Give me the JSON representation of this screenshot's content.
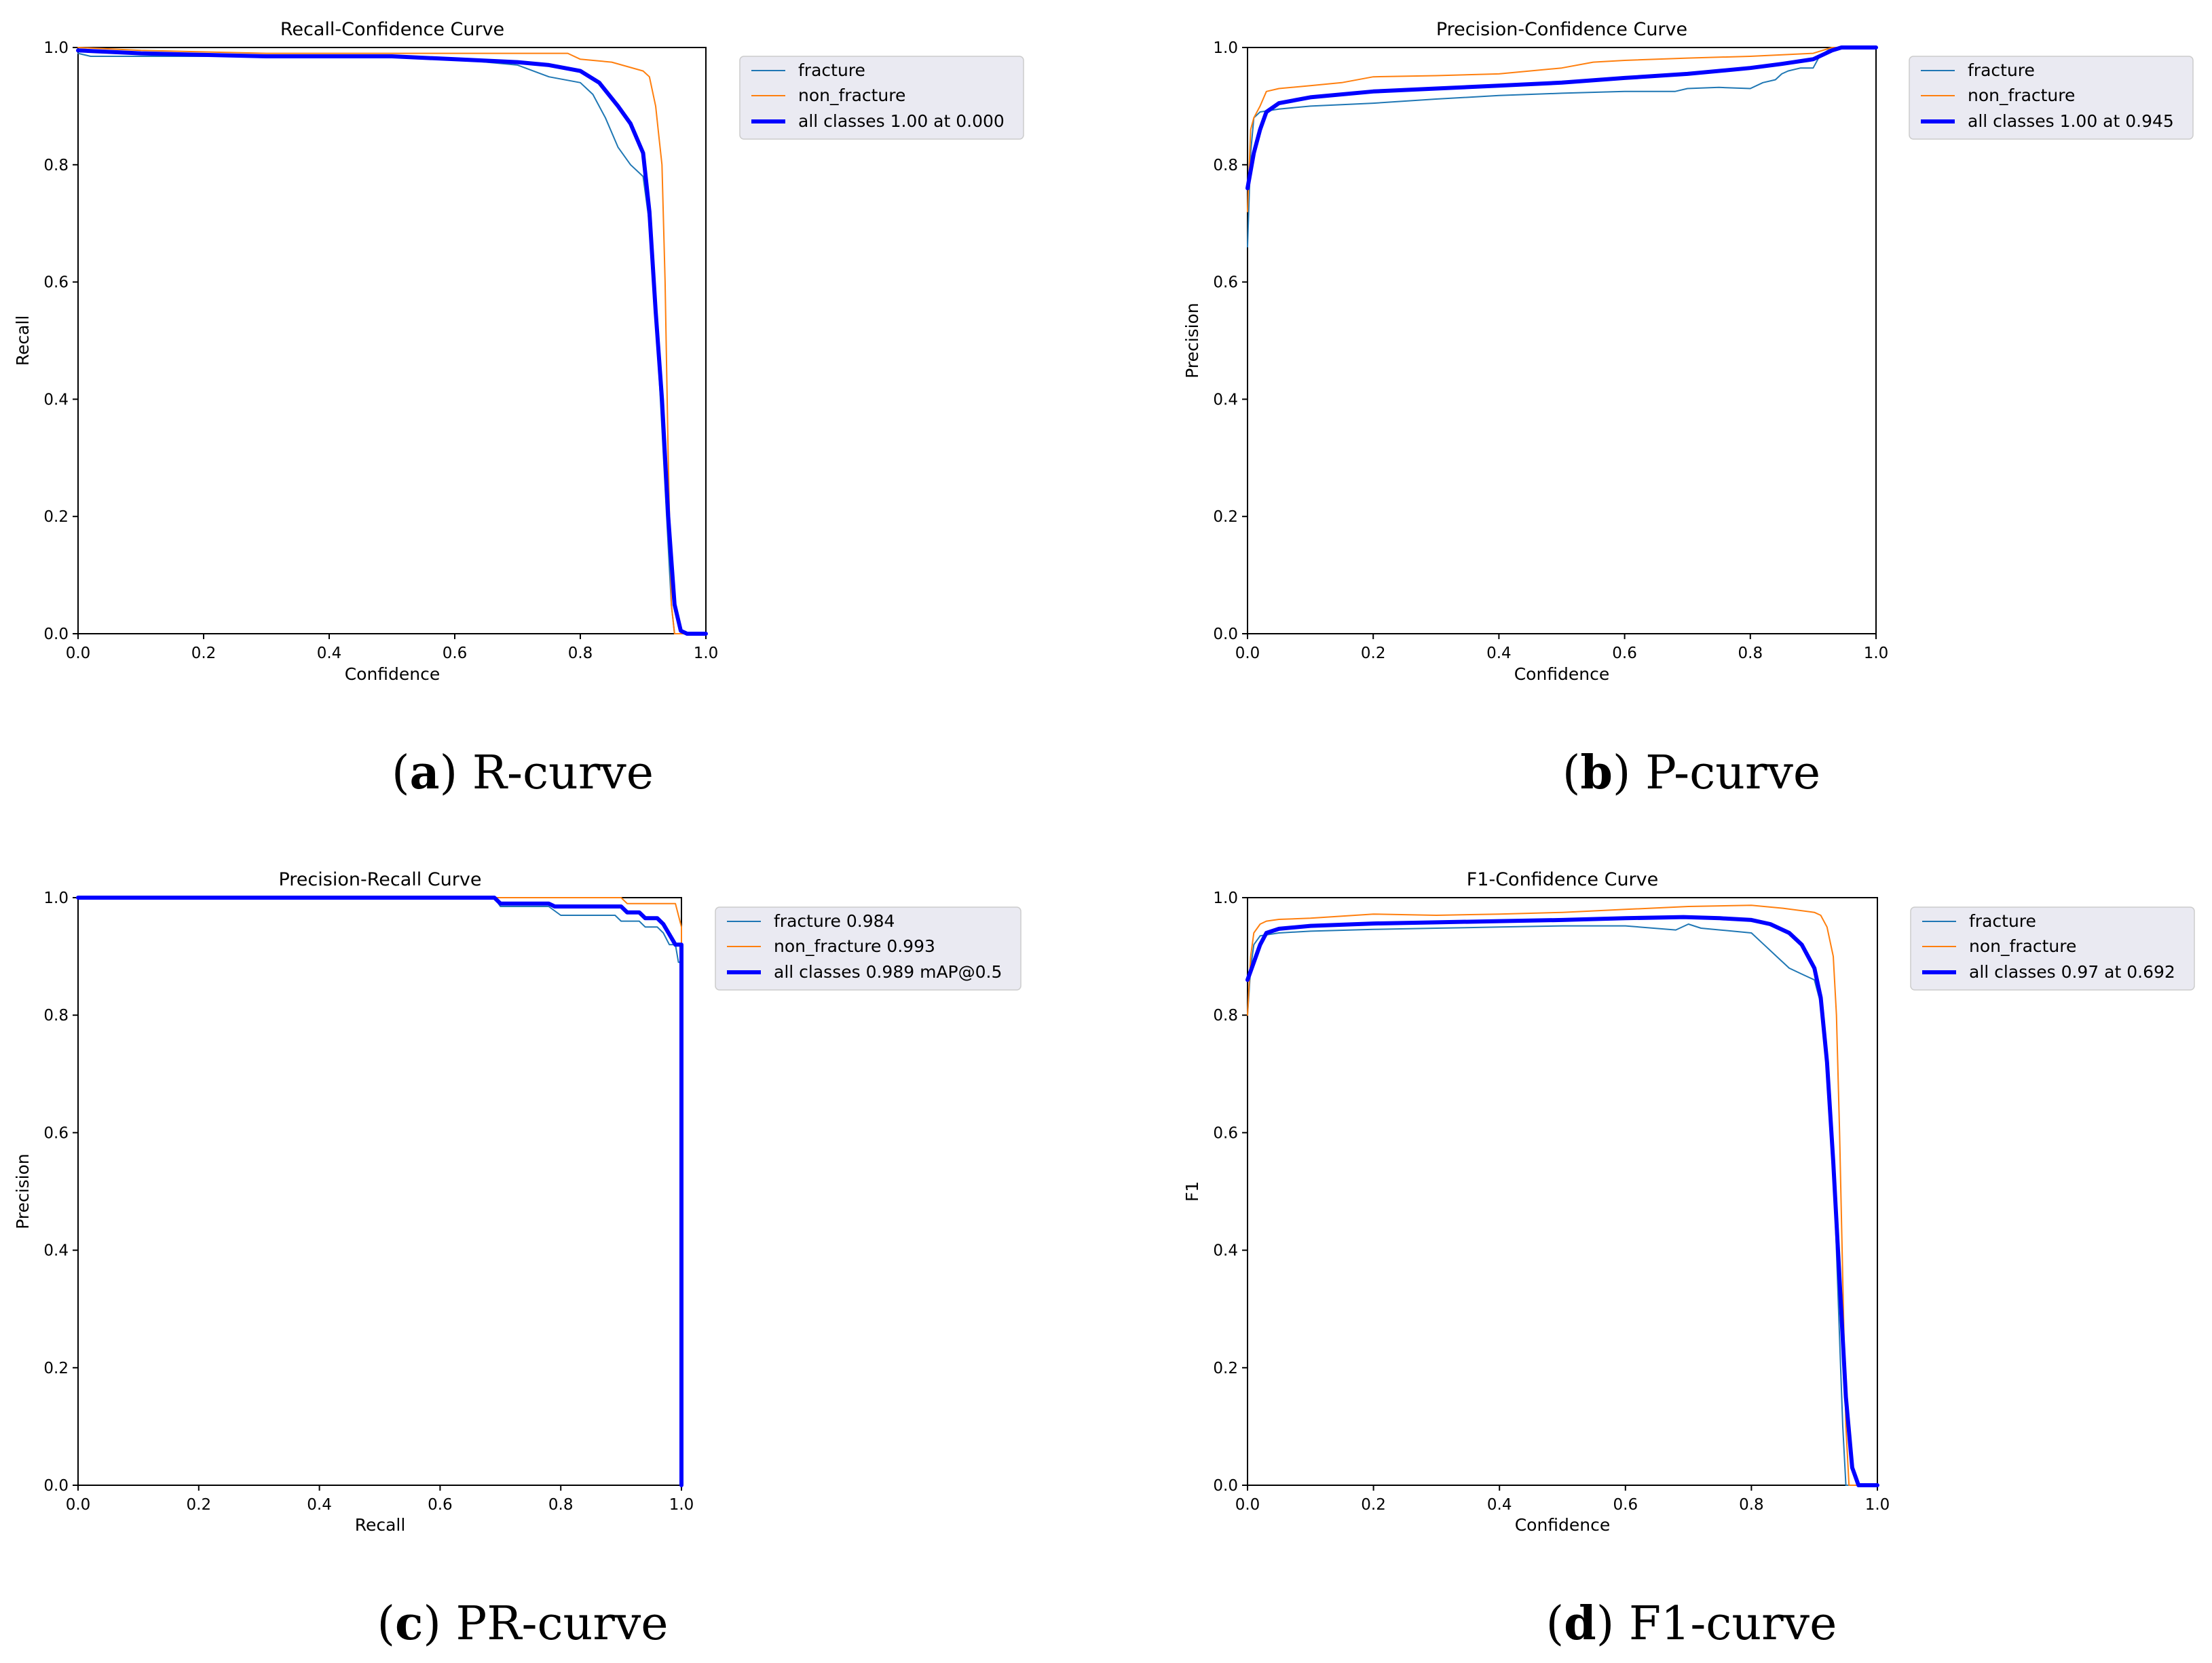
{
  "colors": {
    "fracture": "#1f77b4",
    "non_fracture": "#ff7f0e",
    "all_classes": "#0000ff"
  },
  "chart_data": [
    {
      "type": "line",
      "title": "Recall-Confidence Curve",
      "xlabel": "Confidence",
      "ylabel": "Recall",
      "xlim": [
        0,
        1
      ],
      "ylim": [
        0,
        1
      ],
      "xticks": [
        "0.0",
        "0.2",
        "0.4",
        "0.6",
        "0.8",
        "1.0"
      ],
      "yticks": [
        "0.0",
        "0.2",
        "0.4",
        "0.6",
        "0.8",
        "1.0"
      ],
      "legend_position": "outside-right-top",
      "caption": {
        "letter": "a",
        "text": "R-curve"
      },
      "series": [
        {
          "name": "fracture",
          "color": "#1f77b4",
          "width": 2,
          "x": [
            0,
            0.02,
            0.1,
            0.3,
            0.5,
            0.6,
            0.7,
            0.75,
            0.8,
            0.82,
            0.84,
            0.86,
            0.88,
            0.9,
            0.91,
            0.92,
            0.93,
            0.94,
            0.945,
            0.95,
            1.0
          ],
          "y": [
            0.99,
            0.985,
            0.985,
            0.985,
            0.985,
            0.98,
            0.97,
            0.95,
            0.94,
            0.92,
            0.88,
            0.83,
            0.8,
            0.78,
            0.7,
            0.55,
            0.35,
            0.15,
            0.05,
            0,
            0
          ]
        },
        {
          "name": "non_fracture",
          "color": "#ff7f0e",
          "width": 2,
          "x": [
            0,
            0.1,
            0.3,
            0.5,
            0.6,
            0.7,
            0.78,
            0.8,
            0.85,
            0.9,
            0.91,
            0.92,
            0.925,
            0.93,
            0.935,
            0.94,
            0.945,
            0.95,
            1.0
          ],
          "y": [
            1.0,
            0.995,
            0.99,
            0.99,
            0.99,
            0.99,
            0.99,
            0.98,
            0.975,
            0.96,
            0.95,
            0.9,
            0.85,
            0.8,
            0.6,
            0.3,
            0.05,
            0,
            0
          ]
        },
        {
          "name": "all classes 1.00 at 0.000",
          "color": "#0000ff",
          "width": 6,
          "x": [
            0,
            0.1,
            0.3,
            0.5,
            0.6,
            0.7,
            0.75,
            0.8,
            0.83,
            0.86,
            0.88,
            0.9,
            0.91,
            0.92,
            0.93,
            0.94,
            0.95,
            0.96,
            0.97,
            1.0
          ],
          "y": [
            0.995,
            0.99,
            0.985,
            0.985,
            0.98,
            0.975,
            0.97,
            0.96,
            0.94,
            0.9,
            0.87,
            0.82,
            0.72,
            0.55,
            0.4,
            0.2,
            0.05,
            0.005,
            0,
            0
          ]
        }
      ]
    },
    {
      "type": "line",
      "title": "Precision-Confidence Curve",
      "xlabel": "Confidence",
      "ylabel": "Precision",
      "xlim": [
        0,
        1
      ],
      "ylim": [
        0,
        1
      ],
      "xticks": [
        "0.0",
        "0.2",
        "0.4",
        "0.6",
        "0.8",
        "1.0"
      ],
      "yticks": [
        "0.0",
        "0.2",
        "0.4",
        "0.6",
        "0.8",
        "1.0"
      ],
      "legend_position": "outside-right-top",
      "caption": {
        "letter": "b",
        "text": "P-curve"
      },
      "series": [
        {
          "name": "fracture",
          "color": "#1f77b4",
          "width": 2,
          "x": [
            0,
            0.005,
            0.01,
            0.02,
            0.05,
            0.1,
            0.2,
            0.3,
            0.4,
            0.5,
            0.6,
            0.68,
            0.7,
            0.75,
            0.8,
            0.82,
            0.84,
            0.85,
            0.86,
            0.88,
            0.9,
            0.91,
            0.93,
            0.95,
            1.0
          ],
          "y": [
            0.66,
            0.82,
            0.88,
            0.89,
            0.895,
            0.9,
            0.905,
            0.912,
            0.918,
            0.922,
            0.925,
            0.925,
            0.93,
            0.932,
            0.93,
            0.94,
            0.945,
            0.955,
            0.96,
            0.965,
            0.965,
            0.985,
            1.0,
            1.0,
            1.0
          ]
        },
        {
          "name": "non_fracture",
          "color": "#ff7f0e",
          "width": 2,
          "x": [
            0,
            0.005,
            0.01,
            0.02,
            0.03,
            0.05,
            0.1,
            0.15,
            0.2,
            0.3,
            0.4,
            0.5,
            0.55,
            0.6,
            0.7,
            0.8,
            0.9,
            0.93,
            0.95,
            1.0
          ],
          "y": [
            0.72,
            0.86,
            0.88,
            0.9,
            0.925,
            0.93,
            0.935,
            0.94,
            0.95,
            0.952,
            0.955,
            0.965,
            0.975,
            0.978,
            0.982,
            0.985,
            0.99,
            1.0,
            1.0,
            1.0
          ]
        },
        {
          "name": "all classes 1.00 at 0.945",
          "color": "#0000ff",
          "width": 6,
          "x": [
            0,
            0.01,
            0.02,
            0.03,
            0.05,
            0.1,
            0.2,
            0.3,
            0.4,
            0.5,
            0.6,
            0.7,
            0.8,
            0.85,
            0.9,
            0.93,
            0.945,
            1.0
          ],
          "y": [
            0.76,
            0.82,
            0.86,
            0.89,
            0.905,
            0.915,
            0.925,
            0.93,
            0.935,
            0.94,
            0.948,
            0.955,
            0.965,
            0.972,
            0.98,
            0.995,
            1.0,
            1.0
          ]
        }
      ]
    },
    {
      "type": "line",
      "title": "Precision-Recall Curve",
      "xlabel": "Recall",
      "ylabel": "Precision",
      "xlim": [
        0,
        1
      ],
      "ylim": [
        0,
        1
      ],
      "xticks": [
        "0.0",
        "0.2",
        "0.4",
        "0.6",
        "0.8",
        "1.0"
      ],
      "yticks": [
        "0.0",
        "0.2",
        "0.4",
        "0.6",
        "0.8",
        "1.0"
      ],
      "legend_position": "outside-right-top",
      "caption": {
        "letter": "c",
        "text": "PR-curve"
      },
      "series": [
        {
          "name": "fracture 0.984",
          "color": "#1f77b4",
          "width": 2,
          "x": [
            0,
            0.69,
            0.7,
            0.78,
            0.8,
            0.89,
            0.9,
            0.93,
            0.94,
            0.96,
            0.97,
            0.98,
            0.99,
            0.995,
            1.0,
            1.0
          ],
          "y": [
            1.0,
            1.0,
            0.985,
            0.985,
            0.97,
            0.97,
            0.96,
            0.96,
            0.95,
            0.95,
            0.94,
            0.92,
            0.92,
            0.89,
            0.89,
            0.0
          ]
        },
        {
          "name": "non_fracture 0.993",
          "color": "#ff7f0e",
          "width": 2,
          "x": [
            0,
            0.9,
            0.91,
            0.99,
            1.0,
            1.0
          ],
          "y": [
            1.0,
            1.0,
            0.99,
            0.99,
            0.95,
            0.0
          ]
        },
        {
          "name": "all classes 0.989 mAP@0.5",
          "color": "#0000ff",
          "width": 6,
          "x": [
            0,
            0.69,
            0.7,
            0.78,
            0.79,
            0.9,
            0.91,
            0.93,
            0.94,
            0.96,
            0.97,
            0.99,
            1.0,
            1.0
          ],
          "y": [
            1.0,
            1.0,
            0.99,
            0.99,
            0.985,
            0.985,
            0.975,
            0.975,
            0.965,
            0.965,
            0.955,
            0.92,
            0.92,
            0.0
          ]
        }
      ]
    },
    {
      "type": "line",
      "title": "F1-Confidence Curve",
      "xlabel": "Confidence",
      "ylabel": "F1",
      "xlim": [
        0,
        1
      ],
      "ylim": [
        0,
        1
      ],
      "xticks": [
        "0.0",
        "0.2",
        "0.4",
        "0.6",
        "0.8",
        "1.0"
      ],
      "yticks": [
        "0.0",
        "0.2",
        "0.4",
        "0.6",
        "0.8",
        "1.0"
      ],
      "legend_position": "outside-right-top",
      "caption": {
        "letter": "d",
        "text": "F1-curve"
      },
      "series": [
        {
          "name": "fracture",
          "color": "#1f77b4",
          "width": 2,
          "x": [
            0,
            0.005,
            0.01,
            0.02,
            0.05,
            0.1,
            0.2,
            0.3,
            0.4,
            0.5,
            0.6,
            0.68,
            0.7,
            0.72,
            0.75,
            0.8,
            0.82,
            0.84,
            0.86,
            0.88,
            0.9,
            0.91,
            0.92,
            0.93,
            0.935,
            0.94,
            0.945,
            0.95,
            1.0
          ],
          "y": [
            0.8,
            0.88,
            0.92,
            0.935,
            0.94,
            0.943,
            0.946,
            0.948,
            0.95,
            0.952,
            0.952,
            0.945,
            0.955,
            0.948,
            0.945,
            0.94,
            0.92,
            0.9,
            0.88,
            0.87,
            0.86,
            0.82,
            0.7,
            0.55,
            0.4,
            0.25,
            0.1,
            0.0,
            0.0
          ]
        },
        {
          "name": "non_fracture",
          "color": "#ff7f0e",
          "width": 2,
          "x": [
            0,
            0.005,
            0.01,
            0.02,
            0.03,
            0.05,
            0.1,
            0.2,
            0.3,
            0.4,
            0.5,
            0.6,
            0.7,
            0.8,
            0.85,
            0.9,
            0.91,
            0.92,
            0.93,
            0.935,
            0.94,
            0.945,
            0.95,
            0.955,
            1.0
          ],
          "y": [
            0.8,
            0.9,
            0.94,
            0.955,
            0.96,
            0.963,
            0.965,
            0.972,
            0.97,
            0.972,
            0.975,
            0.98,
            0.985,
            0.987,
            0.982,
            0.975,
            0.97,
            0.95,
            0.9,
            0.8,
            0.6,
            0.35,
            0.1,
            0.0,
            0.0
          ]
        },
        {
          "name": "all classes 0.97 at 0.692",
          "color": "#0000ff",
          "width": 6,
          "x": [
            0,
            0.01,
            0.02,
            0.03,
            0.05,
            0.1,
            0.2,
            0.3,
            0.4,
            0.5,
            0.6,
            0.692,
            0.75,
            0.8,
            0.83,
            0.86,
            0.88,
            0.9,
            0.91,
            0.92,
            0.93,
            0.94,
            0.95,
            0.96,
            0.97,
            1.0
          ],
          "y": [
            0.86,
            0.89,
            0.92,
            0.94,
            0.947,
            0.952,
            0.956,
            0.958,
            0.96,
            0.962,
            0.965,
            0.967,
            0.965,
            0.962,
            0.955,
            0.94,
            0.92,
            0.88,
            0.83,
            0.72,
            0.55,
            0.35,
            0.15,
            0.03,
            0.0,
            0.0
          ]
        }
      ]
    }
  ]
}
